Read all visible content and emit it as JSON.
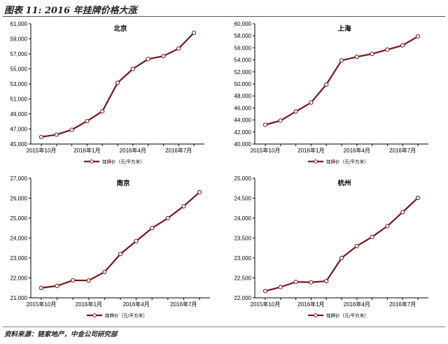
{
  "figure": {
    "title": "图表 11: 2016 年挂牌价格大涨",
    "source": "资料来源：链家地产，中金公司研究部"
  },
  "colors": {
    "line": "#7b1416",
    "marker_fill": "#ffffff",
    "axis": "#000000"
  },
  "chart_data": [
    {
      "type": "line",
      "title": "北京",
      "x": [
        "2015年10月",
        "2015年11月",
        "2015年12月",
        "2016年1月",
        "2016年2月",
        "2016年3月",
        "2016年4月",
        "2016年5月",
        "2016年6月",
        "2016年7月",
        "2016年8月"
      ],
      "xticks": [
        "2015年10月",
        "2016年1月",
        "2016年4月",
        "2016年7月"
      ],
      "series": [
        {
          "name": "挂牌价（元/平方米）",
          "values": [
            45950,
            46250,
            46900,
            48050,
            49350,
            53150,
            55000,
            56300,
            56700,
            57700,
            59800
          ]
        }
      ],
      "ylim": [
        45000,
        61000
      ],
      "yticks": [
        "45,000",
        "47,000",
        "49,000",
        "51,000",
        "53,000",
        "55,000",
        "57,000",
        "59,000",
        "61,000"
      ],
      "legend": "bottom"
    },
    {
      "type": "line",
      "title": "上海",
      "x": [
        "2015年10月",
        "2015年11月",
        "2015年12月",
        "2016年1月",
        "2016年2月",
        "2016年3月",
        "2016年4月",
        "2016年5月",
        "2016年6月",
        "2016年7月",
        "2016年8月"
      ],
      "xticks": [
        "2015年10月",
        "2016年1月",
        "2016年4月",
        "2016年7月"
      ],
      "series": [
        {
          "name": "挂牌价（元/平方米）",
          "values": [
            43200,
            43900,
            45400,
            46900,
            49900,
            53900,
            54500,
            55000,
            55700,
            56400,
            57900
          ]
        }
      ],
      "ylim": [
        40000,
        60000
      ],
      "yticks": [
        "40,000",
        "42,000",
        "44,000",
        "46,000",
        "48,000",
        "50,000",
        "52,000",
        "54,000",
        "56,000",
        "58,000",
        "60,000"
      ],
      "legend": "bottom"
    },
    {
      "type": "line",
      "title": "南京",
      "x": [
        "2015年10月",
        "2015年11月",
        "2015年12月",
        "2016年1月",
        "2016年2月",
        "2016年3月",
        "2016年4月",
        "2016年5月",
        "2016年6月",
        "2016年7月",
        "2016年8月"
      ],
      "xticks": [
        "2015年10月",
        "2016年1月",
        "2016年4月",
        "2016年7月"
      ],
      "series": [
        {
          "name": "挂牌价（元/平方米）",
          "values": [
            21500,
            21600,
            21880,
            21870,
            22300,
            23200,
            23850,
            24500,
            25000,
            25600,
            26300
          ]
        }
      ],
      "ylim": [
        21000,
        27000
      ],
      "yticks": [
        "21,000",
        "22,000",
        "23,000",
        "24,000",
        "25,000",
        "26,000",
        "27,000"
      ],
      "legend": "bottom"
    },
    {
      "type": "line",
      "title": "杭州",
      "x": [
        "2015年10月",
        "2015年11月",
        "2015年12月",
        "2016年1月",
        "2016年2月",
        "2016年3月",
        "2016年4月",
        "2016年5月",
        "2016年6月",
        "2016年7月",
        "2016年8月"
      ],
      "xticks": [
        "2015年10月",
        "2016年1月",
        "2016年4月",
        "2016年7月"
      ],
      "series": [
        {
          "name": "挂牌价（元/平方米）",
          "values": [
            22170,
            22270,
            22400,
            22390,
            22420,
            23000,
            23300,
            23530,
            23800,
            24150,
            24510
          ]
        }
      ],
      "ylim": [
        22000,
        25000
      ],
      "yticks": [
        "22,000",
        "22,500",
        "23,000",
        "23,500",
        "24,000",
        "24,500",
        "25,000"
      ],
      "legend": "bottom"
    }
  ]
}
